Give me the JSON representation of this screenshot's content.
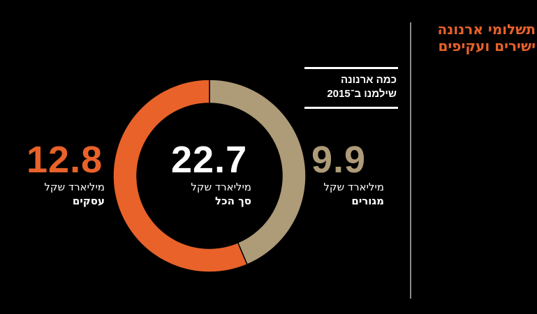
{
  "header": {
    "title_line1": "תשלומי ארנונה",
    "title_line2": "ישירים ועקיפים"
  },
  "subtitle": {
    "line1": "כמה ארנונה",
    "line2": "שילמנו ב־2015"
  },
  "colors": {
    "background": "#000000",
    "businesses": "#e8622a",
    "residences": "#ae9b78",
    "title": "#e8622a",
    "divider": "#8a8a8a"
  },
  "total": {
    "value": "22.7",
    "unit": "מיליארד שקל",
    "label": "סך הכל"
  },
  "chart_data": {
    "type": "pie",
    "donut": true,
    "slices": [
      {
        "label": "מגורים",
        "value": 9.9,
        "display": "9.9",
        "unit": "מיליארד שקל",
        "color": "#ae9b78"
      },
      {
        "label": "עסקים",
        "value": 12.8,
        "display": "12.8",
        "unit": "מיליארד שקל",
        "color": "#e8622a"
      }
    ],
    "total": 22.7
  }
}
